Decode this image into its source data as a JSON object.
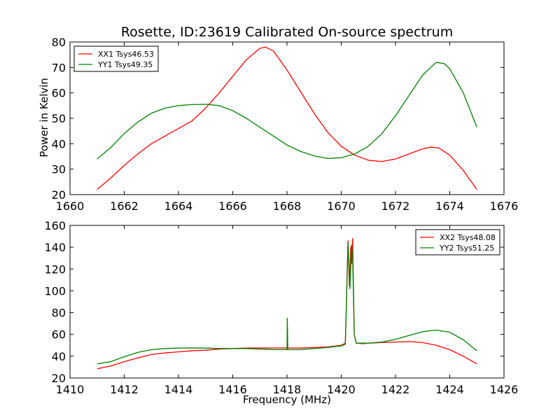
{
  "figure": {
    "title": "Rosette, ID:23619 Calibrated On-source spectrum",
    "ylabel": "Power in Kelvin",
    "xlabel": "Frequency (MHz)"
  },
  "chart_data": [
    {
      "type": "line",
      "title": "Rosette, ID:23619 Calibrated On-source spectrum",
      "ylabel": "Power in Kelvin",
      "xlabel": "",
      "xlim": [
        1660,
        1676
      ],
      "ylim": [
        20,
        80
      ],
      "xticks": [
        1660,
        1662,
        1664,
        1666,
        1668,
        1670,
        1672,
        1674,
        1676
      ],
      "yticks": [
        20,
        30,
        40,
        50,
        60,
        70,
        80
      ],
      "grid": false,
      "legend": "top-left",
      "series": [
        {
          "name": "XX1 Tsys46.53",
          "color": "#ff0000",
          "points": [
            [
              1661.0,
              22.0
            ],
            [
              1661.5,
              26.5
            ],
            [
              1662.0,
              31.5
            ],
            [
              1662.5,
              36.0
            ],
            [
              1663.0,
              40.0
            ],
            [
              1663.5,
              43.0
            ],
            [
              1664.0,
              46.0
            ],
            [
              1664.5,
              49.0
            ],
            [
              1665.0,
              54.0
            ],
            [
              1665.5,
              60.0
            ],
            [
              1666.0,
              66.5
            ],
            [
              1666.5,
              73.0
            ],
            [
              1667.0,
              77.5
            ],
            [
              1667.2,
              78.0
            ],
            [
              1667.5,
              76.5
            ],
            [
              1668.0,
              69.0
            ],
            [
              1668.5,
              60.5
            ],
            [
              1669.0,
              52.0
            ],
            [
              1669.5,
              44.5
            ],
            [
              1670.0,
              39.0
            ],
            [
              1670.5,
              35.5
            ],
            [
              1671.0,
              33.5
            ],
            [
              1671.5,
              33.0
            ],
            [
              1672.0,
              34.0
            ],
            [
              1672.5,
              36.0
            ],
            [
              1673.0,
              38.0
            ],
            [
              1673.3,
              38.7
            ],
            [
              1673.6,
              38.3
            ],
            [
              1674.0,
              35.5
            ],
            [
              1674.5,
              29.5
            ],
            [
              1675.0,
              22.0
            ]
          ]
        },
        {
          "name": "YY1 Tsys49.35",
          "color": "#008000",
          "points": [
            [
              1661.0,
              34.0
            ],
            [
              1661.5,
              38.5
            ],
            [
              1662.0,
              44.0
            ],
            [
              1662.5,
              48.5
            ],
            [
              1663.0,
              52.0
            ],
            [
              1663.5,
              54.0
            ],
            [
              1664.0,
              55.0
            ],
            [
              1664.5,
              55.4
            ],
            [
              1665.0,
              55.5
            ],
            [
              1665.5,
              55.0
            ],
            [
              1666.0,
              53.0
            ],
            [
              1666.5,
              50.0
            ],
            [
              1667.0,
              46.5
            ],
            [
              1667.5,
              43.0
            ],
            [
              1668.0,
              39.5
            ],
            [
              1668.5,
              37.0
            ],
            [
              1669.0,
              35.2
            ],
            [
              1669.5,
              34.2
            ],
            [
              1670.0,
              34.5
            ],
            [
              1670.5,
              36.0
            ],
            [
              1671.0,
              39.0
            ],
            [
              1671.5,
              44.0
            ],
            [
              1672.0,
              51.0
            ],
            [
              1672.5,
              59.0
            ],
            [
              1673.0,
              67.0
            ],
            [
              1673.5,
              72.0
            ],
            [
              1673.8,
              71.5
            ],
            [
              1674.0,
              69.5
            ],
            [
              1674.5,
              60.0
            ],
            [
              1675.0,
              46.5
            ]
          ]
        }
      ]
    },
    {
      "type": "line",
      "title": "",
      "xlabel": "Frequency (MHz)",
      "ylabel": "",
      "xlim": [
        1410,
        1426
      ],
      "ylim": [
        20,
        160
      ],
      "xticks": [
        1410,
        1412,
        1414,
        1416,
        1418,
        1420,
        1422,
        1424,
        1426
      ],
      "yticks": [
        20,
        40,
        60,
        80,
        100,
        120,
        140,
        160
      ],
      "grid": false,
      "legend": "top-right",
      "series": [
        {
          "name": "XX2 Tsys48.08",
          "color": "#ff0000",
          "points": [
            [
              1411.0,
              28.5
            ],
            [
              1411.5,
              31.0
            ],
            [
              1412.0,
              35.0
            ],
            [
              1412.5,
              38.5
            ],
            [
              1413.0,
              41.5
            ],
            [
              1413.5,
              43.0
            ],
            [
              1414.0,
              44.0
            ],
            [
              1414.5,
              45.0
            ],
            [
              1415.0,
              45.5
            ],
            [
              1415.5,
              46.5
            ],
            [
              1416.0,
              47.0
            ],
            [
              1416.5,
              47.5
            ],
            [
              1417.0,
              47.5
            ],
            [
              1417.5,
              47.5
            ],
            [
              1418.0,
              47.5
            ],
            [
              1418.5,
              47.5
            ],
            [
              1419.0,
              48.0
            ],
            [
              1419.5,
              48.5
            ],
            [
              1420.0,
              50.0
            ],
            [
              1420.15,
              52.0
            ],
            [
              1420.25,
              146.0
            ],
            [
              1420.3,
              104.0
            ],
            [
              1420.35,
              140.0
            ],
            [
              1420.38,
              125.0
            ],
            [
              1420.42,
              148.0
            ],
            [
              1420.48,
              60.0
            ],
            [
              1420.55,
              52.0
            ],
            [
              1420.8,
              51.5
            ],
            [
              1421.0,
              52.0
            ],
            [
              1421.5,
              52.5
            ],
            [
              1422.0,
              53.0
            ],
            [
              1422.5,
              53.5
            ],
            [
              1423.0,
              52.5
            ],
            [
              1423.5,
              50.0
            ],
            [
              1424.0,
              46.0
            ],
            [
              1424.5,
              40.0
            ],
            [
              1425.0,
              33.0
            ]
          ]
        },
        {
          "name": "YY2 Tsys51.25",
          "color": "#008000",
          "points": [
            [
              1411.0,
              33.0
            ],
            [
              1411.5,
              35.0
            ],
            [
              1412.0,
              39.5
            ],
            [
              1412.5,
              43.5
            ],
            [
              1413.0,
              46.0
            ],
            [
              1413.5,
              47.0
            ],
            [
              1414.0,
              47.5
            ],
            [
              1414.5,
              47.5
            ],
            [
              1415.0,
              47.5
            ],
            [
              1415.5,
              47.0
            ],
            [
              1416.0,
              47.0
            ],
            [
              1416.5,
              47.0
            ],
            [
              1417.0,
              46.5
            ],
            [
              1417.5,
              46.0
            ],
            [
              1418.0,
              46.0
            ],
            [
              1418.01,
              75.0
            ],
            [
              1418.03,
              46.0
            ],
            [
              1418.5,
              46.0
            ],
            [
              1419.0,
              47.0
            ],
            [
              1419.5,
              48.0
            ],
            [
              1420.0,
              49.5
            ],
            [
              1420.15,
              51.0
            ],
            [
              1420.25,
              144.0
            ],
            [
              1420.32,
              102.0
            ],
            [
              1420.38,
              142.0
            ],
            [
              1420.42,
              130.0
            ],
            [
              1420.48,
              60.0
            ],
            [
              1420.55,
              52.0
            ],
            [
              1421.0,
              52.0
            ],
            [
              1421.5,
              53.0
            ],
            [
              1422.0,
              55.5
            ],
            [
              1422.5,
              59.0
            ],
            [
              1423.0,
              62.5
            ],
            [
              1423.5,
              64.0
            ],
            [
              1424.0,
              62.0
            ],
            [
              1424.5,
              55.0
            ],
            [
              1425.0,
              45.0
            ]
          ]
        }
      ]
    }
  ]
}
